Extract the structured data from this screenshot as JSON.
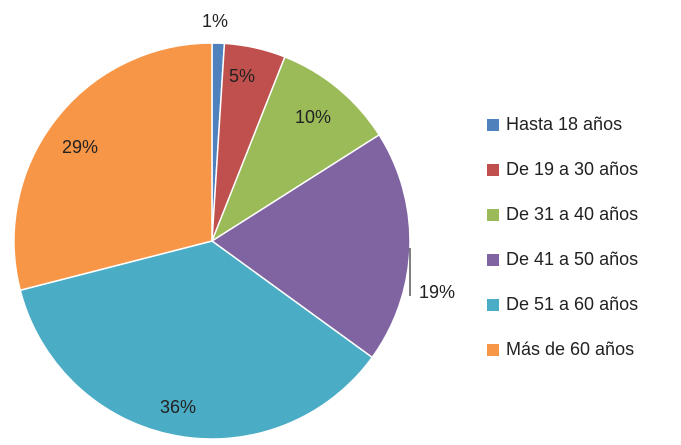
{
  "chart_data": {
    "type": "pie",
    "categories": [
      "Hasta 18 años",
      "De 19 a 30 años",
      "De 31 a 40 años",
      "De 41 a 50 años",
      "De 51 a 60 años",
      "Más de 60 años"
    ],
    "values": [
      1,
      5,
      10,
      19,
      36,
      29
    ],
    "value_labels": [
      "1%",
      "5%",
      "10%",
      "19%",
      "36%",
      "29%"
    ],
    "colors": [
      "#4f81bd",
      "#c0504d",
      "#9bbb59",
      "#8064a2",
      "#4bacc6",
      "#f79646"
    ],
    "legend": "right"
  }
}
